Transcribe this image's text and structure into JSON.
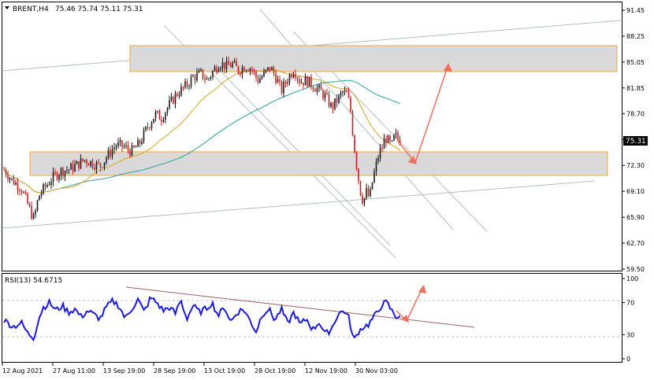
{
  "header": {
    "symbol_label": "BRENT,H4",
    "ohlc_label": "75.46 75.74 75.11 75.31"
  },
  "price_panel": {
    "current_price_label": "75.31",
    "y_ticks": [
      "91.45",
      "88.25",
      "85.05",
      "81.85",
      "78.70",
      "75.50",
      "72.30",
      "69.10",
      "65.90",
      "62.70",
      "59.50"
    ]
  },
  "rsi_panel": {
    "title": "RSI(13) 54.6715",
    "y_ticks": [
      "100",
      "70",
      "30",
      "0"
    ]
  },
  "x_axis": {
    "labels": [
      "12 Aug 2021",
      "27 Aug 11:00",
      "13 Sep 19:00",
      "28 Sep 19:00",
      "13 Oct 19:00",
      "28 Oct 19:00",
      "12 Nov 19:00",
      "30 Nov 03:00"
    ]
  },
  "colors": {
    "bull_candle": "#1a1a1a",
    "bear_candle": "#d11a1a",
    "ma_fast": "#d9a520",
    "ma_slow": "#2aa198",
    "rsi_line": "#1a1adc",
    "trendline": "#b0bfc8",
    "zone_fill": "#d9d9d9",
    "zone_border": "#f2a93b",
    "forecast_arrow": "#f07060",
    "rsi_trendline": "#a06060"
  },
  "chart_data": {
    "type": "candlestick",
    "symbol": "BRENT",
    "timeframe": "H4",
    "ylim": [
      59.5,
      91.45
    ],
    "rsi_ylim": [
      0,
      100
    ],
    "rsi_period": 13,
    "rsi_value": 54.6715,
    "last": {
      "open": 75.46,
      "high": 75.74,
      "low": 75.11,
      "close": 75.31
    },
    "price_path": [
      [
        0,
        71.8
      ],
      [
        10,
        70.5
      ],
      [
        22,
        69.5
      ],
      [
        30,
        67.5
      ],
      [
        38,
        65.6
      ],
      [
        44,
        68.5
      ],
      [
        52,
        69.6
      ],
      [
        62,
        70.8
      ],
      [
        72,
        71.6
      ],
      [
        82,
        71.8
      ],
      [
        92,
        72.3
      ],
      [
        102,
        73.0
      ],
      [
        112,
        72.6
      ],
      [
        122,
        72.2
      ],
      [
        132,
        73.6
      ],
      [
        142,
        74.8
      ],
      [
        152,
        74.6
      ],
      [
        162,
        74.0
      ],
      [
        172,
        75.0
      ],
      [
        182,
        77.0
      ],
      [
        192,
        78.6
      ],
      [
        200,
        78.2
      ],
      [
        210,
        79.8
      ],
      [
        220,
        81.2
      ],
      [
        230,
        82.0
      ],
      [
        240,
        83.2
      ],
      [
        250,
        83.6
      ],
      [
        258,
        82.8
      ],
      [
        266,
        84.0
      ],
      [
        274,
        85.0
      ],
      [
        282,
        84.5
      ],
      [
        290,
        84.8
      ],
      [
        298,
        84.0
      ],
      [
        306,
        84.6
      ],
      [
        314,
        84.3
      ],
      [
        322,
        82.8
      ],
      [
        330,
        83.5
      ],
      [
        338,
        84.4
      ],
      [
        346,
        83.0
      ],
      [
        352,
        81.5
      ],
      [
        360,
        83.0
      ],
      [
        368,
        84.2
      ],
      [
        376,
        82.6
      ],
      [
        384,
        82.8
      ],
      [
        392,
        82.2
      ],
      [
        400,
        81.6
      ],
      [
        408,
        80.8
      ],
      [
        416,
        79.4
      ],
      [
        424,
        80.5
      ],
      [
        430,
        81.3
      ],
      [
        436,
        81.0
      ],
      [
        440,
        79.0
      ],
      [
        444,
        75.0
      ],
      [
        448,
        72.0
      ],
      [
        452,
        69.2
      ],
      [
        456,
        67.8
      ],
      [
        460,
        69.0
      ],
      [
        464,
        68.2
      ],
      [
        468,
        70.5
      ],
      [
        472,
        72.2
      ],
      [
        476,
        73.8
      ],
      [
        480,
        74.5
      ],
      [
        484,
        75.8
      ],
      [
        488,
        75.2
      ],
      [
        492,
        74.6
      ],
      [
        496,
        76.0
      ],
      [
        500,
        75.6
      ],
      [
        504,
        75.31
      ]
    ],
    "rsi_path": [
      [
        0,
        48
      ],
      [
        12,
        40
      ],
      [
        22,
        45
      ],
      [
        30,
        32
      ],
      [
        38,
        26
      ],
      [
        44,
        50
      ],
      [
        50,
        64
      ],
      [
        58,
        70
      ],
      [
        66,
        60
      ],
      [
        74,
        66
      ],
      [
        82,
        58
      ],
      [
        90,
        62
      ],
      [
        98,
        52
      ],
      [
        106,
        60
      ],
      [
        114,
        55
      ],
      [
        122,
        50
      ],
      [
        130,
        64
      ],
      [
        138,
        72
      ],
      [
        146,
        66
      ],
      [
        154,
        50
      ],
      [
        162,
        62
      ],
      [
        170,
        74
      ],
      [
        178,
        58
      ],
      [
        186,
        76
      ],
      [
        194,
        70
      ],
      [
        202,
        60
      ],
      [
        210,
        64
      ],
      [
        218,
        56
      ],
      [
        224,
        74
      ],
      [
        232,
        50
      ],
      [
        240,
        66
      ],
      [
        248,
        58
      ],
      [
        256,
        62
      ],
      [
        264,
        70
      ],
      [
        272,
        54
      ],
      [
        280,
        64
      ],
      [
        288,
        46
      ],
      [
        296,
        58
      ],
      [
        304,
        62
      ],
      [
        312,
        48
      ],
      [
        320,
        34
      ],
      [
        328,
        56
      ],
      [
        336,
        62
      ],
      [
        344,
        48
      ],
      [
        352,
        62
      ],
      [
        360,
        44
      ],
      [
        368,
        58
      ],
      [
        376,
        42
      ],
      [
        384,
        50
      ],
      [
        392,
        36
      ],
      [
        400,
        46
      ],
      [
        408,
        30
      ],
      [
        416,
        38
      ],
      [
        424,
        56
      ],
      [
        432,
        60
      ],
      [
        438,
        50
      ],
      [
        444,
        22
      ],
      [
        450,
        34
      ],
      [
        456,
        40
      ],
      [
        462,
        42
      ],
      [
        468,
        50
      ],
      [
        474,
        58
      ],
      [
        480,
        68
      ],
      [
        486,
        70
      ],
      [
        492,
        60
      ],
      [
        498,
        52
      ],
      [
        504,
        55
      ]
    ],
    "levels": {
      "upper_zone": [
        83.2,
        87.0
      ],
      "lower_zone": [
        71.2,
        74.0
      ]
    }
  }
}
